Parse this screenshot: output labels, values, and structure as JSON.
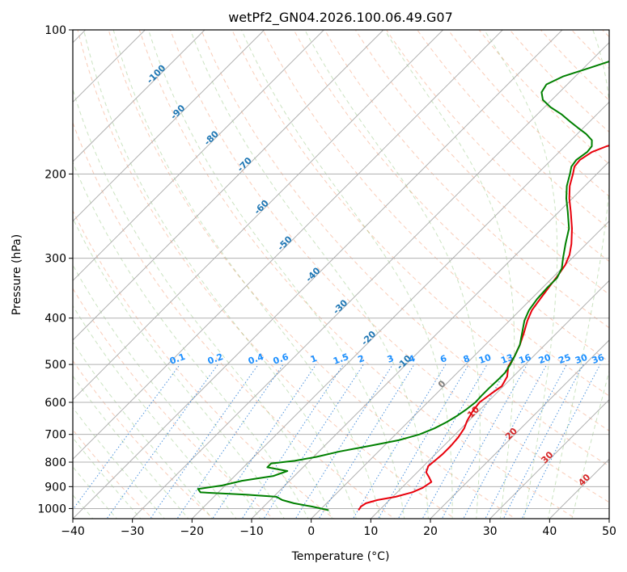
{
  "chart_data": {
    "type": "line",
    "title": "wetPf2_GN04.2026.100.06.49.G07",
    "xlabel": "Temperature (°C)",
    "ylabel": "Pressure (hPa)",
    "xlim": [
      -40,
      50
    ],
    "ylim": [
      1050,
      100
    ],
    "x_ticks": [
      -40,
      -30,
      -20,
      -10,
      0,
      10,
      20,
      30,
      40,
      50
    ],
    "x_tick_labels": [
      "−40",
      "−30",
      "−20",
      "−10",
      "0",
      "10",
      "20",
      "30",
      "40",
      "50"
    ],
    "y_ticks": [
      100,
      200,
      300,
      400,
      500,
      600,
      700,
      800,
      900,
      1000
    ],
    "y_tick_labels": [
      "100",
      "200",
      "300",
      "400",
      "500",
      "600",
      "700",
      "800",
      "900",
      "1000"
    ],
    "isotherm_labels": [
      {
        "t": -100,
        "text": "-100"
      },
      {
        "t": -90,
        "text": "-90"
      },
      {
        "t": -80,
        "text": "-80"
      },
      {
        "t": -70,
        "text": "-70"
      },
      {
        "t": -60,
        "text": "-60"
      },
      {
        "t": -50,
        "text": "-50"
      },
      {
        "t": -40,
        "text": "-40"
      },
      {
        "t": -30,
        "text": "-30"
      },
      {
        "t": -20,
        "text": "-20"
      },
      {
        "t": -10,
        "text": "-10"
      }
    ],
    "isotherm_labels_warm": [
      {
        "t": 0,
        "text": "0",
        "color": "#808080"
      },
      {
        "t": 10,
        "text": "10",
        "color": "#d62728"
      },
      {
        "t": 20,
        "text": "20",
        "color": "#d62728"
      },
      {
        "t": 30,
        "text": "30",
        "color": "#d62728"
      },
      {
        "t": 40,
        "text": "40",
        "color": "#d62728"
      }
    ],
    "mixing_ratio_labels": [
      "0.1",
      "0.2",
      "0.4",
      "0.6",
      "1",
      "1.5",
      "2",
      "3",
      "4",
      "6",
      "8",
      "10",
      "13",
      "16",
      "20",
      "25",
      "30",
      "36"
    ],
    "mixing_ratio_values": [
      0.1,
      0.2,
      0.4,
      0.6,
      1,
      1.5,
      2,
      3,
      4,
      6,
      8,
      10,
      13,
      16,
      20,
      25,
      30,
      36
    ],
    "series": [
      {
        "name": "Temperature",
        "color": "#e8000b",
        "points": [
          [
            1008,
            6.5
          ],
          [
            990,
            6.3
          ],
          [
            975,
            6.6
          ],
          [
            960,
            8.0
          ],
          [
            945,
            10.5
          ],
          [
            925,
            12.5
          ],
          [
            905,
            13.5
          ],
          [
            880,
            14.0
          ],
          [
            860,
            12.8
          ],
          [
            840,
            11.5
          ],
          [
            815,
            10.8
          ],
          [
            795,
            11.0
          ],
          [
            770,
            11.2
          ],
          [
            740,
            11.2
          ],
          [
            710,
            11.0
          ],
          [
            680,
            10.5
          ],
          [
            655,
            9.7
          ],
          [
            625,
            9.0
          ],
          [
            600,
            8.7
          ],
          [
            575,
            9.2
          ],
          [
            555,
            9.7
          ],
          [
            530,
            9.0
          ],
          [
            505,
            7.5
          ],
          [
            480,
            6.8
          ],
          [
            455,
            5.8
          ],
          [
            430,
            4.5
          ],
          [
            405,
            3.0
          ],
          [
            385,
            2.0
          ],
          [
            365,
            1.5
          ],
          [
            345,
            1.0
          ],
          [
            325,
            0.5
          ],
          [
            310,
            0.0
          ],
          [
            295,
            -1.0
          ],
          [
            280,
            -2.5
          ],
          [
            260,
            -5.0
          ],
          [
            240,
            -8.0
          ],
          [
            225,
            -10.5
          ],
          [
            212,
            -12.5
          ],
          [
            200,
            -14.0
          ],
          [
            193,
            -15.0
          ],
          [
            187,
            -15.2
          ],
          [
            180,
            -14.5
          ],
          [
            175,
            -13.0
          ],
          [
            170,
            -10.0
          ],
          [
            165,
            -7.0
          ],
          [
            160,
            -4.5
          ],
          [
            155,
            -2.0
          ],
          [
            150,
            0.5
          ],
          [
            145,
            2.5
          ],
          [
            140,
            4.0
          ],
          [
            135,
            5.0
          ],
          [
            130,
            5.5
          ],
          [
            125,
            6.0
          ],
          [
            120,
            7.5
          ],
          [
            115,
            9.5
          ],
          [
            110,
            12.0
          ],
          [
            105,
            14.0
          ],
          [
            100,
            16.0
          ]
        ]
      },
      {
        "name": "Dewpoint",
        "color": "#008000",
        "points": [
          [
            1008,
            1.5
          ],
          [
            990,
            -2.0
          ],
          [
            975,
            -5.5
          ],
          [
            960,
            -8.0
          ],
          [
            945,
            -9.5
          ],
          [
            935,
            -15.0
          ],
          [
            925,
            -23.0
          ],
          [
            910,
            -24.0
          ],
          [
            895,
            -20.5
          ],
          [
            875,
            -18.0
          ],
          [
            855,
            -13.5
          ],
          [
            835,
            -12.0
          ],
          [
            820,
            -16.0
          ],
          [
            805,
            -16.0
          ],
          [
            795,
            -12.5
          ],
          [
            780,
            -9.5
          ],
          [
            760,
            -6.5
          ],
          [
            740,
            -2.5
          ],
          [
            720,
            1.5
          ],
          [
            700,
            4.0
          ],
          [
            680,
            5.5
          ],
          [
            660,
            6.5
          ],
          [
            640,
            7.2
          ],
          [
            620,
            7.7
          ],
          [
            600,
            8.0
          ],
          [
            580,
            7.9
          ],
          [
            560,
            7.9
          ],
          [
            540,
            8.0
          ],
          [
            520,
            8.0
          ],
          [
            500,
            7.5
          ],
          [
            480,
            6.8
          ],
          [
            455,
            5.8
          ],
          [
            430,
            4.2
          ],
          [
            405,
            2.5
          ],
          [
            385,
            1.5
          ],
          [
            365,
            1.0
          ],
          [
            345,
            0.8
          ],
          [
            330,
            0.8
          ],
          [
            315,
            0.0
          ],
          [
            300,
            -1.5
          ],
          [
            280,
            -3.5
          ],
          [
            260,
            -5.5
          ],
          [
            240,
            -8.5
          ],
          [
            225,
            -11.0
          ],
          [
            212,
            -13.0
          ],
          [
            200,
            -14.5
          ],
          [
            193,
            -15.5
          ],
          [
            187,
            -15.8
          ],
          [
            180,
            -15.3
          ],
          [
            175,
            -15.5
          ],
          [
            170,
            -16.5
          ],
          [
            165,
            -18.5
          ],
          [
            160,
            -21.0
          ],
          [
            155,
            -23.5
          ],
          [
            150,
            -26.0
          ],
          [
            145,
            -29.0
          ],
          [
            140,
            -31.5
          ],
          [
            135,
            -33.0
          ],
          [
            130,
            -33.5
          ],
          [
            125,
            -32.0
          ],
          [
            120,
            -29.0
          ],
          [
            115,
            -26.0
          ],
          [
            110,
            -23.0
          ],
          [
            105,
            -20.5
          ],
          [
            100,
            -18.0
          ]
        ]
      }
    ]
  }
}
